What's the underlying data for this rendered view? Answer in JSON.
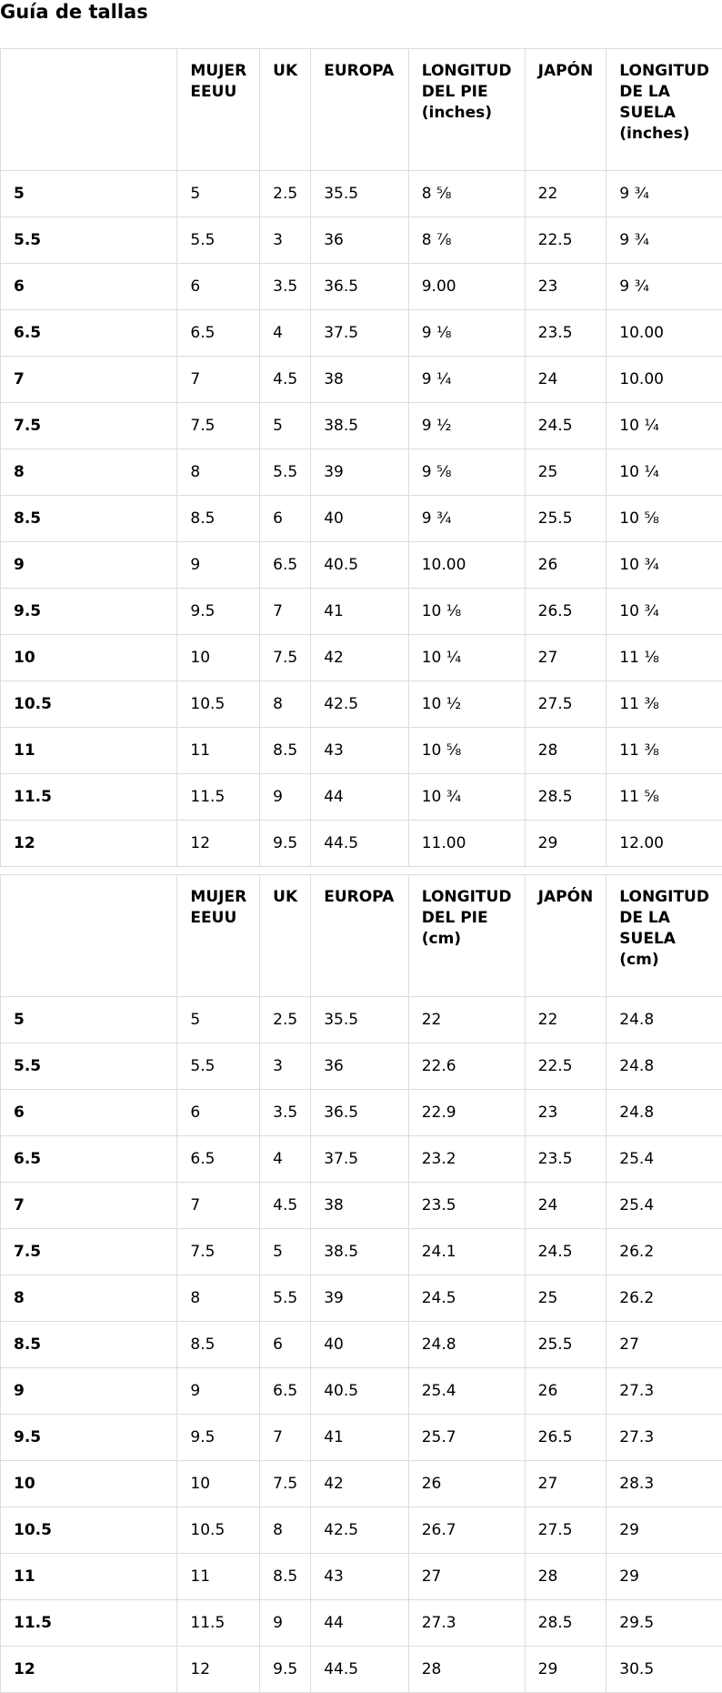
{
  "page": {
    "title": "Guía de tallas"
  },
  "tables": [
    {
      "headers": [
        "",
        "MUJER EEUU",
        "UK",
        "EUROPA",
        "LONGITUD DEL PIE (inches)",
        "JAPÓN",
        "LONGITUD DE LA SUELA (inches)"
      ],
      "rows": [
        [
          "5",
          "5",
          "2.5",
          "35.5",
          "8 ⅝",
          "22",
          "9 ¾"
        ],
        [
          "5.5",
          "5.5",
          "3",
          "36",
          "8 ⅞",
          "22.5",
          "9 ¾"
        ],
        [
          "6",
          "6",
          "3.5",
          "36.5",
          "9.00",
          "23",
          "9 ¾"
        ],
        [
          "6.5",
          "6.5",
          "4",
          "37.5",
          "9 ⅛",
          "23.5",
          "10.00"
        ],
        [
          "7",
          "7",
          "4.5",
          "38",
          "9 ¼",
          "24",
          "10.00"
        ],
        [
          "7.5",
          "7.5",
          "5",
          "38.5",
          "9 ½",
          "24.5",
          "10 ¼"
        ],
        [
          "8",
          "8",
          "5.5",
          "39",
          "9 ⅝",
          "25",
          "10 ¼"
        ],
        [
          "8.5",
          "8.5",
          "6",
          "40",
          "9 ¾",
          "25.5",
          "10 ⅝"
        ],
        [
          "9",
          "9",
          "6.5",
          "40.5",
          "10.00",
          "26",
          "10 ¾"
        ],
        [
          "9.5",
          "9.5",
          "7",
          "41",
          "10 ⅛",
          "26.5",
          "10 ¾"
        ],
        [
          "10",
          "10",
          "7.5",
          "42",
          "10 ¼",
          "27",
          "11 ⅛"
        ],
        [
          "10.5",
          "10.5",
          "8",
          "42.5",
          "10 ½",
          "27.5",
          "11 ⅜"
        ],
        [
          "11",
          "11",
          "8.5",
          "43",
          "10 ⅝",
          "28",
          "11 ⅜"
        ],
        [
          "11.5",
          "11.5",
          "9",
          "44",
          "10 ¾",
          "28.5",
          "11 ⅝"
        ],
        [
          "12",
          "12",
          "9.5",
          "44.5",
          "11.00",
          "29",
          "12.00"
        ]
      ]
    },
    {
      "headers": [
        "",
        "MUJER EEUU",
        "UK",
        "EUROPA",
        "LONGITUD DEL PIE (cm)",
        "JAPÓN",
        "LONGITUD DE LA SUELA (cm)"
      ],
      "rows": [
        [
          "5",
          "5",
          "2.5",
          "35.5",
          "22",
          "22",
          "24.8"
        ],
        [
          "5.5",
          "5.5",
          "3",
          "36",
          "22.6",
          "22.5",
          "24.8"
        ],
        [
          "6",
          "6",
          "3.5",
          "36.5",
          "22.9",
          "23",
          "24.8"
        ],
        [
          "6.5",
          "6.5",
          "4",
          "37.5",
          "23.2",
          "23.5",
          "25.4"
        ],
        [
          "7",
          "7",
          "4.5",
          "38",
          "23.5",
          "24",
          "25.4"
        ],
        [
          "7.5",
          "7.5",
          "5",
          "38.5",
          "24.1",
          "24.5",
          "26.2"
        ],
        [
          "8",
          "8",
          "5.5",
          "39",
          "24.5",
          "25",
          "26.2"
        ],
        [
          "8.5",
          "8.5",
          "6",
          "40",
          "24.8",
          "25.5",
          "27"
        ],
        [
          "9",
          "9",
          "6.5",
          "40.5",
          "25.4",
          "26",
          "27.3"
        ],
        [
          "9.5",
          "9.5",
          "7",
          "41",
          "25.7",
          "26.5",
          "27.3"
        ],
        [
          "10",
          "10",
          "7.5",
          "42",
          "26",
          "27",
          "28.3"
        ],
        [
          "10.5",
          "10.5",
          "8",
          "42.5",
          "26.7",
          "27.5",
          "29"
        ],
        [
          "11",
          "11",
          "8.5",
          "43",
          "27",
          "28",
          "29"
        ],
        [
          "11.5",
          "11.5",
          "9",
          "44",
          "27.3",
          "28.5",
          "29.5"
        ],
        [
          "12",
          "12",
          "9.5",
          "44.5",
          "28",
          "29",
          "30.5"
        ]
      ]
    }
  ]
}
